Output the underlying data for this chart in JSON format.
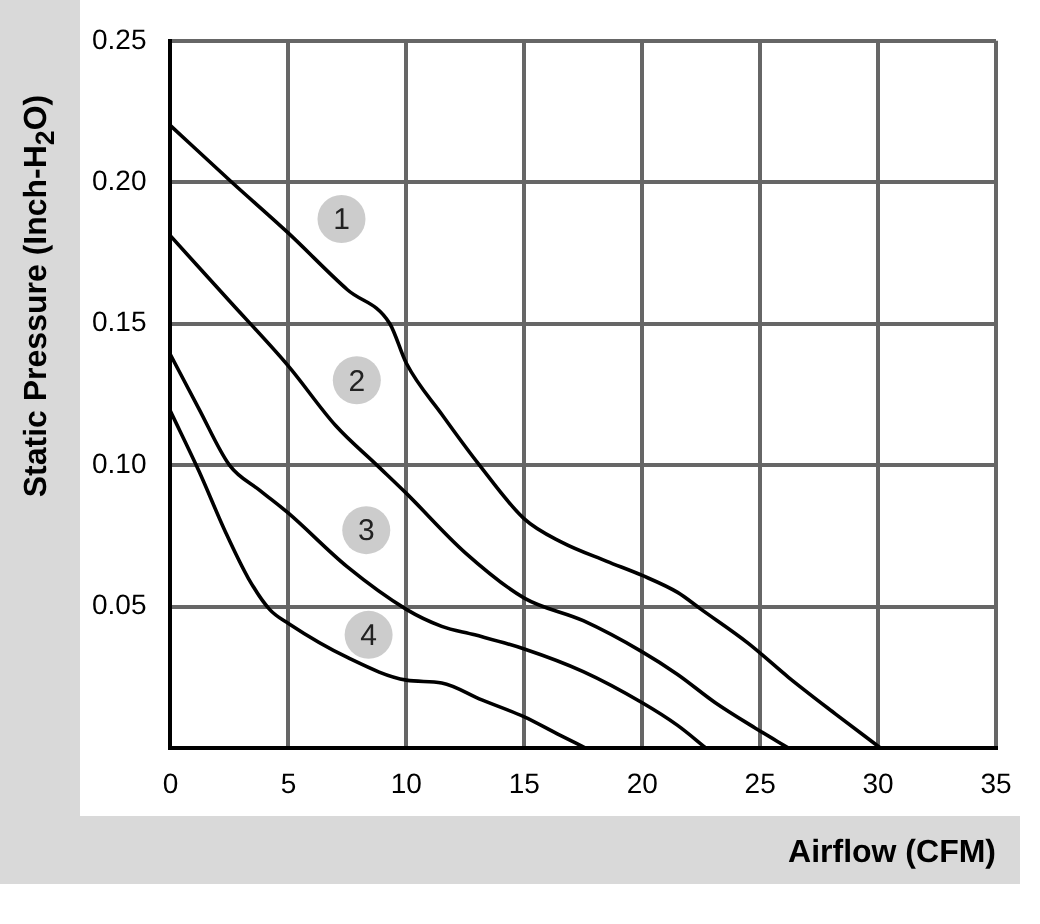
{
  "chart_data": {
    "type": "line",
    "xlabel": "Airflow (CFM)",
    "ylabel": "Static Pressure (Inch-H$_{2}$O)",
    "xlim": [
      0,
      35
    ],
    "xticks": [
      0,
      5,
      10,
      15,
      20,
      25,
      30,
      35
    ],
    "ylim": [
      0,
      0.25
    ],
    "yticks": [
      {
        "value": 0.05,
        "label": "0.05"
      },
      {
        "value": 0.1,
        "label": "0.10"
      },
      {
        "value": 0.15,
        "label": "0.15"
      },
      {
        "value": 0.2,
        "label": "0.20"
      },
      {
        "value": 0.25,
        "label": "0.25"
      }
    ],
    "grid": true,
    "legend": false,
    "marker": "none",
    "line_style": "solid",
    "series": [
      {
        "color": "#000000",
        "x": [
          0,
          2.6,
          5,
          7.5,
          9.3,
          10,
          11.5,
          13.1,
          15,
          16.6,
          18.5,
          20,
          21.5,
          22.5,
          24.5,
          26.2,
          28.2,
          30.1
        ],
        "values": [
          0.22,
          0.2,
          0.182,
          0.162,
          0.15,
          0.136,
          0.118,
          0.1,
          0.081,
          0.0727,
          0.066,
          0.061,
          0.055,
          0.049,
          0.037,
          0.025,
          0.012,
          0
        ]
      },
      {
        "color": "#000000",
        "x": [
          0,
          2.5,
          5,
          7,
          8.75,
          10,
          12.5,
          15,
          17.5,
          20,
          21.5,
          23.1,
          24.8,
          26.2
        ],
        "values": [
          0.181,
          0.158,
          0.135,
          0.114,
          0.1,
          0.09,
          0.069,
          0.053,
          0.045,
          0.034,
          0.026,
          0.016,
          0.007,
          0
        ]
      },
      {
        "color": "#000000",
        "x": [
          0,
          1.2,
          2.5,
          3.8,
          5,
          7.5,
          10,
          11.5,
          12.9,
          15,
          17.5,
          20,
          21.5,
          22.7
        ],
        "values": [
          0.139,
          0.12,
          0.1,
          0.091,
          0.083,
          0.064,
          0.049,
          0.043,
          0.04,
          0.035,
          0.027,
          0.016,
          0.008,
          0
        ]
      },
      {
        "color": "#000000",
        "x": [
          0,
          1.2,
          2.35,
          3.3,
          4.2,
          5,
          7.5,
          10,
          11.5,
          13.2,
          15,
          16.4,
          17.6
        ],
        "values": [
          0.119,
          0.098,
          0.076,
          0.06,
          0.049,
          0.044,
          0.032,
          0.024,
          0.023,
          0.017,
          0.011,
          0.005,
          0
        ]
      }
    ],
    "annotations": [
      {
        "text": "1",
        "x": 7.25,
        "y": 0.187
      },
      {
        "text": "2",
        "x": 7.9,
        "y": 0.13
      },
      {
        "text": "3",
        "x": 8.3,
        "y": 0.077
      },
      {
        "text": "4",
        "x": 8.4,
        "y": 0.04
      }
    ]
  }
}
